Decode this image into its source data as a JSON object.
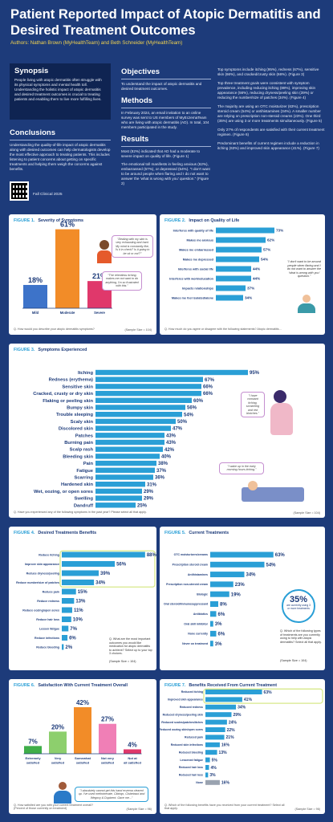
{
  "header": {
    "title": "Patient Reported Impact of Atopic Dermatitis and Desired Treatment Outcomes",
    "authors": "Authors: Nathan Brown (MyHealthTeam) and Beth Schneider (MyHealthTeam)",
    "synopsis_h": "Synopsis",
    "synopsis": "People living with atopic dermatitis often struggle with its physical symptoms and mental health toll. Understanding the holistic impact of atopic dermatitis and desired treatment outcomes is crucial to treating patients and enabling them to live more fulfilling lives.",
    "conclusions_h": "Conclusions",
    "conclusions": "Understanding the quality-of-life impact of atopic dermatitis along with desired outcomes can help dermatologists develop the most effective approach to treating patients. This includes listening to patient concerns about getting on specific treatments and helping them weigh the concerns against benefits.",
    "fall": "Fall Clinical 2025",
    "objectives_h": "Objectives",
    "objectives": "To understand the impact of atopic dermatitis and desired treatment outcomes.",
    "methods_h": "Methods",
    "methods": "In February 2024, an email invitation to an online survey was sent to US members of MyEczemaTeam who are living with atopic dermatitis (AD). In total, 104 members participated in the study.",
    "results_h": "Results",
    "results1": "Most (82%) indicated that AD had a moderate to severe impact on quality of life. (Figure 1)",
    "results2": "The emotional toll manifests in feeling anxious (62%), embarrassed (57%), or depressed (54%). \"I don't want to be around people when flaring and I do not want to answer the 'what is wrong with you' question.\" (Figure 2)",
    "r3a": "Top symptoms include itching (95%), redness (67%), sensitive skin (66%), and cracked/crusty skin (66%). (Figure 3)",
    "r3b": "Top three treatment goals were consistent with symptom prevalence, including reducing itching (88%), improving skin appearance (56%), reducing dryness/peeling skin (39%) or reducing the number/size of patches (34%). (Figure 4)",
    "r3c": "The majority are using an OTC moisturizer (63%), prescription steroid cream (54%) or antihistamines (34%). A smaller number are relying on prescription non-steroid creams (23%). One third (35%) are using 3 or more treatments simultaneously. (Figure 5)",
    "r3d": "Only 27% of respondents are satisfied with their current treatment regimen. (Figure 6)",
    "r3e": "Predominant benefits of current regimen include a reduction in itching (63%) and improved skin appearance (41%). (Figure 7)"
  },
  "chart_data": [
    {
      "type": "bar",
      "title": "Severity of Symptoms",
      "figure": "FIGURE 1.",
      "categories": [
        "Mild",
        "Moderate",
        "Severe"
      ],
      "values": [
        18,
        61,
        21
      ],
      "colors": [
        "#3d73c9",
        "#f28c28",
        "#e0386b"
      ],
      "quote1": "\"Dealing with my skin is very exhausting and hard. My mind is constantly like, 'Is it in check? Is it going to be ok or not?'\"",
      "quote2": "\"The relentless itching makes me not want to do anything, I'm so frustrated with this.\"",
      "question": "Q. How would you describe your atopic dermatitis symptoms?",
      "sample": "(Sample Size = 104)"
    },
    {
      "type": "bar",
      "title": "Impact on Quality of Life",
      "figure": "FIGURE 2.",
      "categories": [
        "Interferes with quality of life",
        "Makes me anxious",
        "Makes me embarrassed",
        "Makes me depressed",
        "Interferes with social life",
        "Interferes with work/education",
        "Impacts relationships",
        "Makes me feel isolated/alone"
      ],
      "values": [
        73,
        62,
        57,
        54,
        44,
        44,
        37,
        34
      ],
      "quote": "\"I don't want to be around people when flaring and I do not want to answer the 'what is wrong with you' question.\"",
      "question": "Q. How much do you agree or disagree with the following statements? Atopic dermatitis...",
      "sample": "(Sample Size = 104)"
    },
    {
      "type": "bar",
      "title": "Symptoms Experienced",
      "figure": "FIGURE 3.",
      "categories": [
        "Itching",
        "Redness (erythema)",
        "Sensitive skin",
        "Cracked, crusty or dry skin",
        "Flaking or peeling skin",
        "Bumpy skin",
        "Trouble sleeping",
        "Scaly skin",
        "Discolored skin",
        "Patches",
        "Burning pain",
        "Scalp rash",
        "Bleeding skin",
        "Pain",
        "Fatigue",
        "Scarring",
        "Hardened skin",
        "Wet, oozing, or open sores",
        "Swelling",
        "Dandruff"
      ],
      "values": [
        95,
        67,
        66,
        66,
        60,
        56,
        54,
        50,
        47,
        43,
        43,
        42,
        40,
        38,
        37,
        36,
        31,
        29,
        29,
        25
      ],
      "quote1": "\"I have constant itching, scratching and red blotches.\"",
      "quote2": "\"I wake up in the early morning hours itching.\"",
      "question": "Q. Have you experienced any of the following symptoms in the past year? Please select all that apply.",
      "sample": "(Sample Size = 104)"
    },
    {
      "type": "bar",
      "title": "Desired Treatments Benefits",
      "figure": "FIGURE 4.",
      "categories": [
        "Reduce itching",
        "Improve skin appearance",
        "Reduce dryness/peeling",
        "Reduce number/size of patches",
        "Reduce pain",
        "Reduce redness",
        "Reduce oozing/open sores",
        "Reduce hair loss",
        "Lessen fatigue",
        "Reduce infections",
        "Reduce bleeding"
      ],
      "values": [
        88,
        56,
        39,
        34,
        15,
        13,
        11,
        10,
        7,
        6,
        2
      ],
      "question": "Q. What are the most important outcomes you would like medication for atopic dermatitis to achieve? Select up to your top 3 choices.",
      "sample": "(Sample Size = 104)"
    },
    {
      "type": "bar",
      "title": "Current Treatments",
      "figure": "FIGURE 5.",
      "categories": [
        "OTC moisturizers/creams",
        "Prescription steroid cream",
        "Antihistamines",
        "Prescription non-steroid cream",
        "Biologic",
        "Oral steroid/immunosuppressant",
        "Antibiotics",
        "Oral skill inhibitor",
        "None currently",
        "Never on treatment"
      ],
      "values": [
        63,
        54,
        34,
        23,
        19,
        8,
        6,
        3,
        6,
        3
      ],
      "callout_value": "35%",
      "callout_text": "are currently using 3 or more treatments",
      "question": "Q. Which of the following types of treatments are you currently using to help with atopic dermatitis? Select all that apply.",
      "sample": "(Sample Size = 104)"
    },
    {
      "type": "bar",
      "title": "Satisfaction With Current Treatment Overall",
      "figure": "FIGURE 6.",
      "categories": [
        "Extremely satisfied",
        "Very satisfied",
        "Somewhat satisfied",
        "Not very satisfied",
        "Not at all satisfied"
      ],
      "values": [
        7,
        20,
        42,
        27,
        4
      ],
      "colors": [
        "#3fae49",
        "#8dcf6d",
        "#f28c28",
        "#f07fb6",
        "#e0386b"
      ],
      "quote": "\"I absolutely cannot get this hand eczema cleared up. I've used methotrexate, Cibinqo, Clobetasol and Wegovy & Dupixent. Gave me...\"",
      "question": "Q. How satisfied are you with your current treatment overall? (Percent of those currently on treatment)",
      "sample": "(Sample Size = 96)"
    },
    {
      "type": "bar",
      "title": "Benefits Received From Current Treatment",
      "figure": "FIGURE 7.",
      "categories": [
        "Reduced itching",
        "Improved skin appearance",
        "Reduced redness",
        "Reduced dryness/peeling skin",
        "Reduced scales/patches/itches",
        "Reduced oozing skin/open sores",
        "Reduced pain",
        "Reduced skin infections",
        "Reduced bleeding",
        "Lessened fatigue",
        "Reduced hair loss",
        "Reduced hair loss",
        "None"
      ],
      "values": [
        63,
        41,
        34,
        29,
        24,
        22,
        21,
        16,
        13,
        5,
        4,
        3,
        16
      ],
      "question": "Q. Which of the following benefits have you received from your current treatment? Select all that apply.",
      "sample": "(Sample Size = 96)"
    }
  ],
  "colors": {
    "navy": "#1d3b7a",
    "bar": "#2a9fd6",
    "accent": "#f2d34f",
    "highlight": "#d7e98a"
  }
}
